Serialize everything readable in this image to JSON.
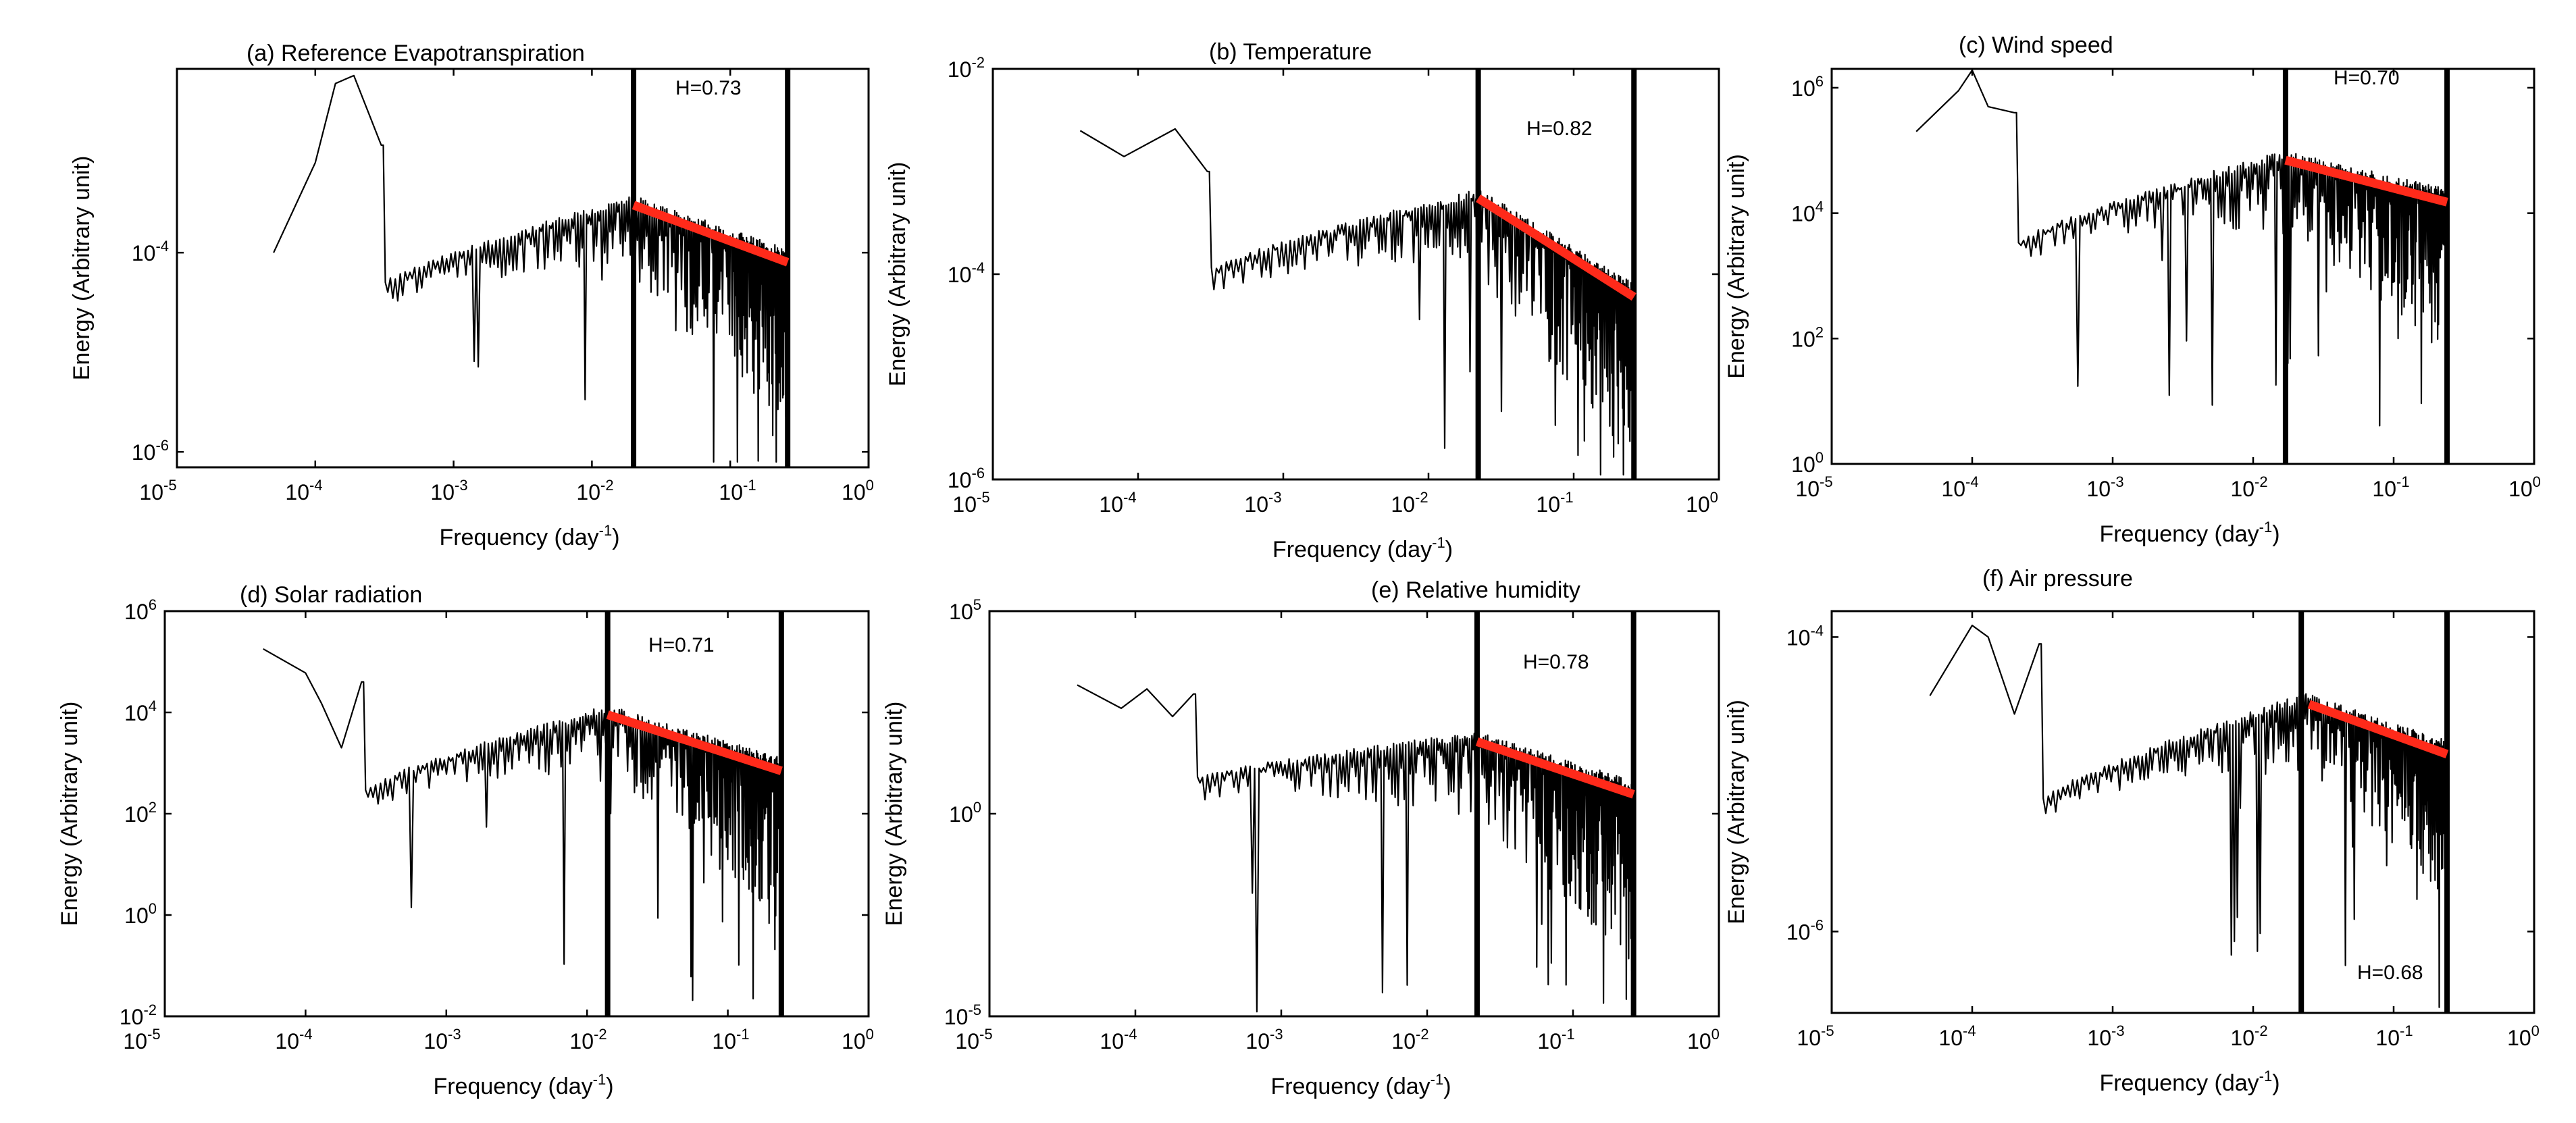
{
  "chart_data": [
    {
      "type": "line",
      "panel": "a",
      "title": "(a) Reference Evapotranspiration",
      "xlabel": "Frequency (day^-1)",
      "ylabel": "Energy (Arbitrary unit)",
      "x_scale": "log",
      "y_scale": "log",
      "xlim": [
        1e-05,
        1
      ],
      "ylim": [
        7e-07,
        0.007
      ],
      "x_ticks": [
        "10^-5",
        "10^-4",
        "10^-3",
        "10^-2",
        "10^-1",
        "10^0"
      ],
      "y_ticks": [
        "10^-6",
        "10^-4"
      ],
      "bounds": [
        0.02,
        0.26
      ],
      "fit": {
        "x": [
          0.02,
          0.26
        ],
        "y": [
          0.0003,
          8e-05
        ]
      },
      "hurst_label": "H=0.73",
      "series": [
        {
          "x": [
            5e-05,
            0.0001,
            0.00014,
            0.00019,
            0.0003
          ],
          "y": [
            0.0001,
            0.0008,
            0.005,
            0.006,
            0.0012
          ]
        }
      ]
    },
    {
      "type": "line",
      "panel": "b",
      "title": "(b) Temperature",
      "xlabel": "Frequency (day^-1)",
      "ylabel": "Energy (Arbitrary unit)",
      "x_scale": "log",
      "y_scale": "log",
      "xlim": [
        1e-05,
        1
      ],
      "ylim": [
        1e-06,
        0.01
      ],
      "x_ticks": [
        "10^-5",
        "10^-4",
        "10^-3",
        "10^-2",
        "10^-1",
        "10^0"
      ],
      "y_ticks": [
        "10^-6",
        "10^-4",
        "10^-2"
      ],
      "bounds": [
        0.022,
        0.26
      ],
      "fit": {
        "x": [
          0.022,
          0.26
        ],
        "y": [
          0.00055,
          6e-05
        ]
      },
      "hurst_label": "H=0.82",
      "series": [
        {
          "x": [
            4e-05,
            8e-05,
            0.00018,
            0.0003
          ],
          "y": [
            0.0025,
            0.0014,
            0.0026,
            0.001
          ]
        }
      ]
    },
    {
      "type": "line",
      "panel": "c",
      "title": "(c) Wind speed",
      "xlabel": "Frequency (day^-1)",
      "ylabel": "Energy (Arbitrary unit)",
      "x_scale": "log",
      "y_scale": "log",
      "xlim": [
        1e-05,
        1
      ],
      "ylim": [
        1,
        2000000
      ],
      "x_ticks": [
        "10^-5",
        "10^-4",
        "10^-3",
        "10^-2",
        "10^-1",
        "10^0"
      ],
      "y_ticks": [
        "10^0",
        "10^2",
        "10^4",
        "10^6"
      ],
      "bounds": [
        0.017,
        0.24
      ],
      "fit": {
        "x": [
          0.017,
          0.24
        ],
        "y": [
          70000,
          15000
        ]
      },
      "hurst_label": "H=0.70",
      "series": [
        {
          "x": [
            4e-05,
            8e-05,
            0.0001,
            0.00013,
            0.0002
          ],
          "y": [
            200000,
            900000,
            2000000,
            500000,
            400000
          ]
        }
      ]
    },
    {
      "type": "line",
      "panel": "d",
      "title": "(d) Solar radiation",
      "xlabel": "Frequency (day^-1)",
      "ylabel": "Energy (Arbitrary unit)",
      "x_scale": "log",
      "y_scale": "log",
      "xlim": [
        1e-05,
        1
      ],
      "ylim": [
        0.01,
        1000000
      ],
      "x_ticks": [
        "10^-5",
        "10^-4",
        "10^-3",
        "10^-2",
        "10^-1",
        "10^0"
      ],
      "y_ticks": [
        "10^-2",
        "10^0",
        "10^2",
        "10^4",
        "10^6"
      ],
      "bounds": [
        0.014,
        0.24
      ],
      "fit": {
        "x": [
          0.014,
          0.24
        ],
        "y": [
          9000,
          700
        ]
      },
      "hurst_label": "H=0.71",
      "series": [
        {
          "x": [
            5e-05,
            0.0001,
            0.00013,
            0.00018,
            0.00025
          ],
          "y": [
            180000,
            60000,
            15000,
            2000,
            40000
          ]
        }
      ]
    },
    {
      "type": "line",
      "panel": "e",
      "title": "(e) Relative humidity",
      "xlabel": "Frequency (day^-1)",
      "ylabel": "Energy (Arbitrary unit)",
      "x_scale": "log",
      "y_scale": "log",
      "xlim": [
        1e-05,
        1
      ],
      "ylim": [
        1e-05,
        100000
      ],
      "x_ticks": [
        "10^-5",
        "10^-4",
        "10^-3",
        "10^-2",
        "10^-1",
        "10^0"
      ],
      "y_ticks": [
        "10^-5",
        "10^0",
        "10^5"
      ],
      "bounds": [
        0.022,
        0.26
      ],
      "fit": {
        "x": [
          0.022,
          0.26
        ],
        "y": [
          60,
          3
        ]
      },
      "hurst_label": "H=0.78",
      "series": [
        {
          "x": [
            4e-05,
            8e-05,
            0.00012,
            0.00018,
            0.00025
          ],
          "y": [
            1500,
            400,
            1200,
            250,
            900
          ]
        }
      ]
    },
    {
      "type": "line",
      "panel": "f",
      "title": "(f) Air pressure",
      "xlabel": "Frequency (day^-1)",
      "ylabel": "Energy (Arbitrary unit)",
      "x_scale": "log",
      "y_scale": "log",
      "xlim": [
        1e-05,
        1
      ],
      "ylim": [
        2.8e-07,
        0.00015
      ],
      "x_ticks": [
        "10^-5",
        "10^-4",
        "10^-3",
        "10^-2",
        "10^-1",
        "10^0"
      ],
      "y_ticks": [
        "10^-6",
        "10^-4"
      ],
      "bounds": [
        0.022,
        0.24
      ],
      "fit": {
        "x": [
          0.025,
          0.24
        ],
        "y": [
          3.5e-05,
          1.6e-05
        ]
      },
      "hurst_label": "H=0.68",
      "series": [
        {
          "x": [
            5e-05,
            0.0001,
            0.00013,
            0.0002,
            0.0003
          ],
          "y": [
            4e-05,
            0.00012,
            0.0001,
            3e-05,
            9e-05
          ]
        }
      ]
    }
  ]
}
